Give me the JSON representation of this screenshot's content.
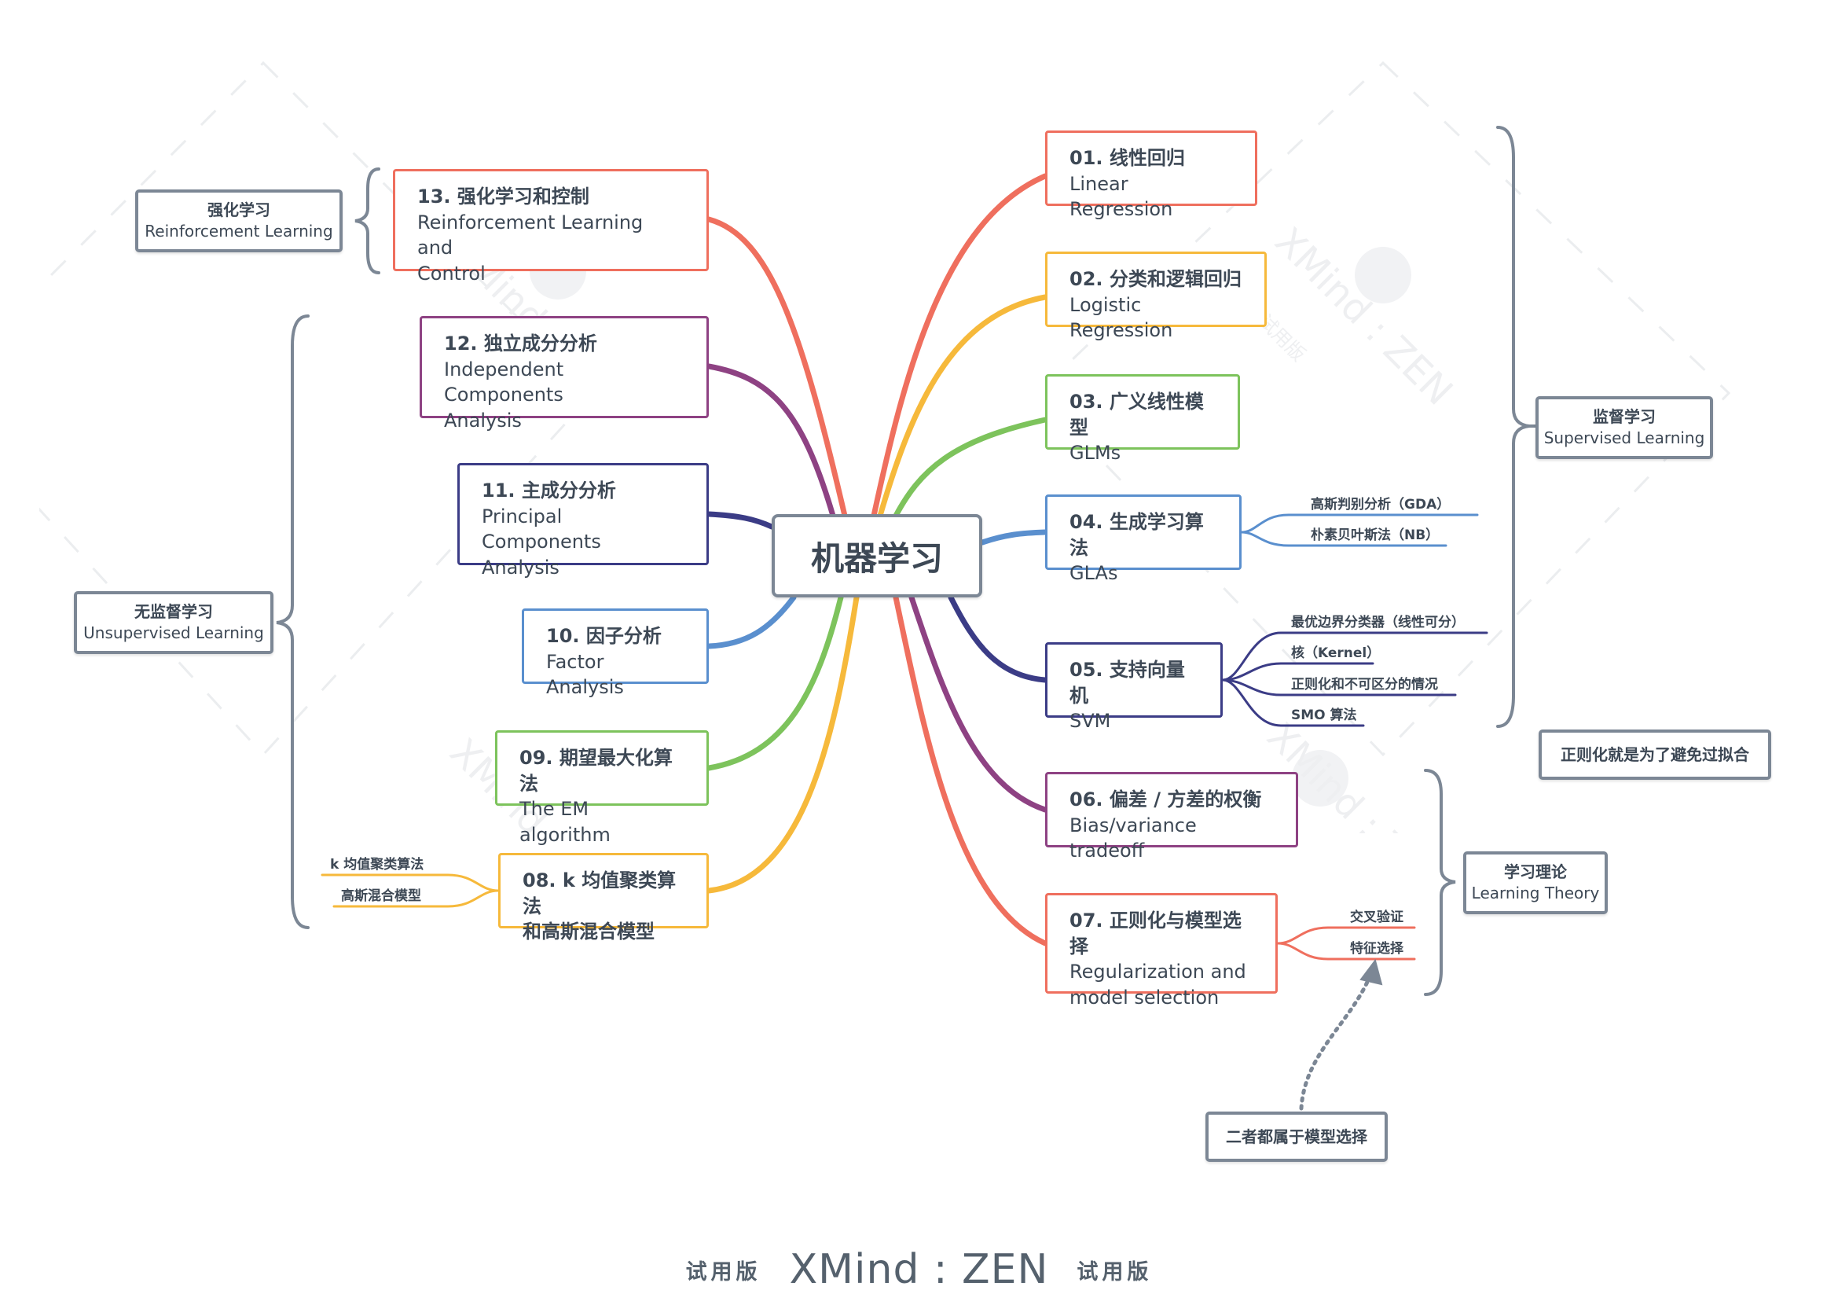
{
  "center": {
    "title": "机器学习"
  },
  "topics": {
    "t01": {
      "line1": "01. 线性回归",
      "line2": "Linear Regression",
      "color": "#ef6f5e"
    },
    "t02": {
      "line1": "02. 分类和逻辑回归",
      "line2": "Logistic Regression",
      "color": "#f6b93b"
    },
    "t03": {
      "line1": "03. 广义线性模型",
      "line2": "GLMs",
      "color": "#7dc35c"
    },
    "t04": {
      "line1": "04. 生成学习算法",
      "line2": "GLAs",
      "color": "#5a8fce"
    },
    "t05": {
      "line1": "05. 支持向量机",
      "line2": "SVM",
      "color": "#3b3c86"
    },
    "t06": {
      "line1": "06. 偏差 / 方差的权衡",
      "line2": "Bias/variance tradeoff",
      "color": "#8e4283"
    },
    "t07": {
      "line1": "07. 正则化与模型选择",
      "line2a": "Regularization and",
      "line2b": "model selection",
      "color": "#ef6f5e"
    },
    "t08": {
      "line1": "08. k 均值聚类算法",
      "line2": "和高斯混合模型",
      "color": "#f6b93b"
    },
    "t09": {
      "line1": "09. 期望最大化算法",
      "line2": "The EM algorithm",
      "color": "#7dc35c"
    },
    "t10": {
      "line1": "10. 因子分析",
      "line2": "Factor Analysis",
      "color": "#5a8fce"
    },
    "t11": {
      "line1": "11. 主成分分析",
      "line2a": "Principal Components",
      "line2b": "Analysis",
      "color": "#3b3c86"
    },
    "t12": {
      "line1": "12. 独立成分分析",
      "line2a": "Independent Components",
      "line2b": "Analysis",
      "color": "#8e4283"
    },
    "t13": {
      "line1": "13. 强化学习和控制",
      "line2a": "Reinforcement Learning and",
      "line2b": "Control",
      "color": "#ef6f5e"
    }
  },
  "leaves": {
    "gda": "高斯判别分析（GDA）",
    "nb": "朴素贝叶斯法（NB）",
    "svm1": "最优边界分类器（线性可分）",
    "svm2": "核（Kernel）",
    "svm3": "正则化和不可区分的情况",
    "svm4": "SMO 算法",
    "cv": "交叉验证",
    "fs": "特征选择",
    "km": "k 均值聚类算法",
    "gmm": "高斯混合模型"
  },
  "categories": {
    "supervised": {
      "zh": "监督学习",
      "en": "Supervised Learning"
    },
    "unsupervised": {
      "zh": "无监督学习",
      "en": "Unsupervised Learning"
    },
    "reinforcement": {
      "zh": "强化学习",
      "en": "Reinforcement Learning"
    },
    "theory": {
      "zh": "学习理论",
      "en": "Learning Theory"
    }
  },
  "notes": {
    "regularization": "正则化就是为了避免过拟合",
    "model_selection": "二者都属于模型选择"
  },
  "watermark": {
    "text": "XMind : ZEN",
    "trial": "试用版"
  },
  "footer": {
    "trial_left": "试用版",
    "brand": "XMind : ZEN",
    "trial_right": "试用版"
  },
  "colors": {
    "border_gray": "#7c8795",
    "text": "#3d4855"
  }
}
